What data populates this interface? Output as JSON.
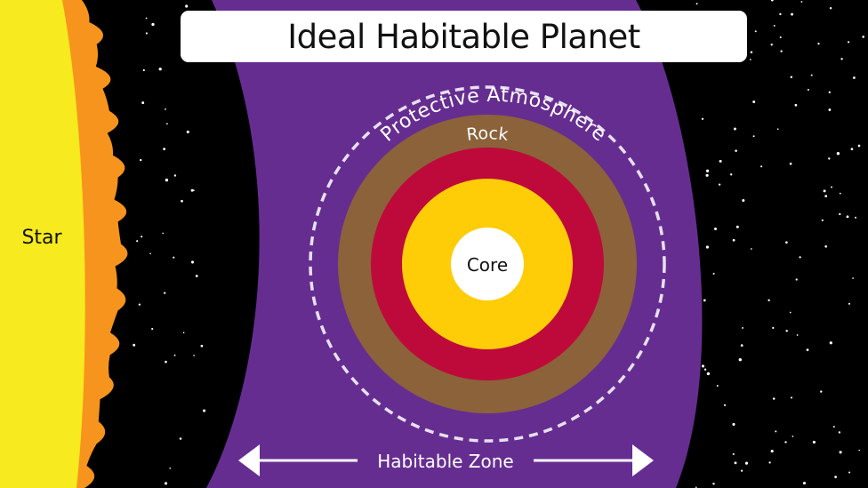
{
  "title": "Ideal Habitable Planet",
  "labels": {
    "star": "Star",
    "atmosphere": "Protective Atmosphere",
    "rock": "Rock",
    "core": "Core",
    "zone": "Habitable Zone"
  },
  "colors": {
    "space": "#000000",
    "star": "#f7ea1e",
    "flare": "#f7941d",
    "zone": "#662d91",
    "rock": "#8b6239",
    "mantle": "#be0a3b",
    "outer_core": "#ffcc08",
    "core": "#ffffff",
    "atmosphere_ring": "#e6e0f0",
    "text_dark": "#111111",
    "text_light": "#ffffff"
  }
}
